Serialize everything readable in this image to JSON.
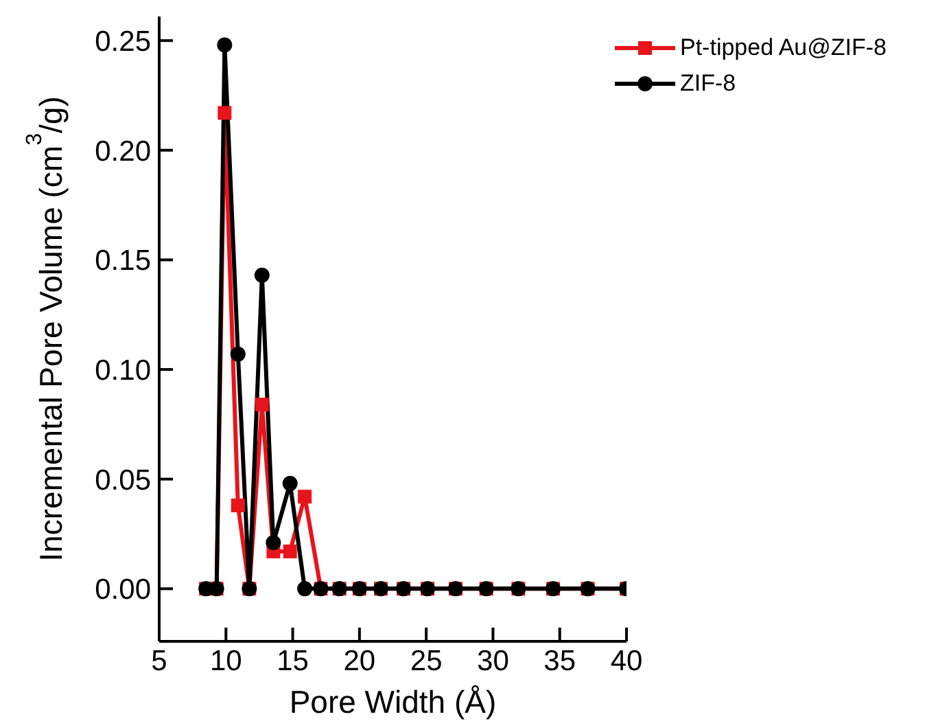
{
  "chart_data": {
    "type": "line",
    "xlabel": "Pore Width (Å)",
    "ylabel": "Incremental Pore Volume (cm$^{3}$/g)",
    "x": [
      8.5,
      9.3,
      9.9,
      10.9,
      11.75,
      12.7,
      13.55,
      14.8,
      15.9,
      17.1,
      18.5,
      20.0,
      21.6,
      23.3,
      25.1,
      27.2,
      29.5,
      31.9,
      34.5,
      37.1,
      40.0
    ],
    "series": [
      {
        "name": "Pt-tipped Au@ZIF-8",
        "color": "#e8141b",
        "marker": "square",
        "values": [
          0,
          0,
          0.217,
          0.038,
          0,
          0.084,
          0.017,
          0.017,
          0.042,
          0,
          0,
          0,
          0,
          0,
          0,
          0,
          0,
          0,
          0,
          0,
          0
        ]
      },
      {
        "name": "ZIF-8",
        "color": "#000000",
        "marker": "circle",
        "values": [
          0,
          0,
          0.248,
          0.107,
          0,
          0.143,
          0.021,
          0.048,
          0,
          0,
          0,
          0,
          0,
          0,
          0,
          0,
          0,
          0,
          0,
          0,
          0
        ]
      }
    ],
    "xlim": [
      5,
      40
    ],
    "xticks": [
      5,
      10,
      15,
      20,
      25,
      30,
      35,
      40
    ],
    "ylim": [
      -0.024,
      0.261
    ],
    "yticks": [
      {
        "value": 0,
        "label": "0.00"
      },
      {
        "value": 0.05,
        "label": "0.05"
      },
      {
        "value": 0.1,
        "label": "0.10"
      },
      {
        "value": 0.15,
        "label": "0.15"
      },
      {
        "value": 0.2,
        "label": "0.20"
      },
      {
        "value": 0.25,
        "label": "0.25"
      }
    ],
    "legend": "top right",
    "grid": false
  }
}
